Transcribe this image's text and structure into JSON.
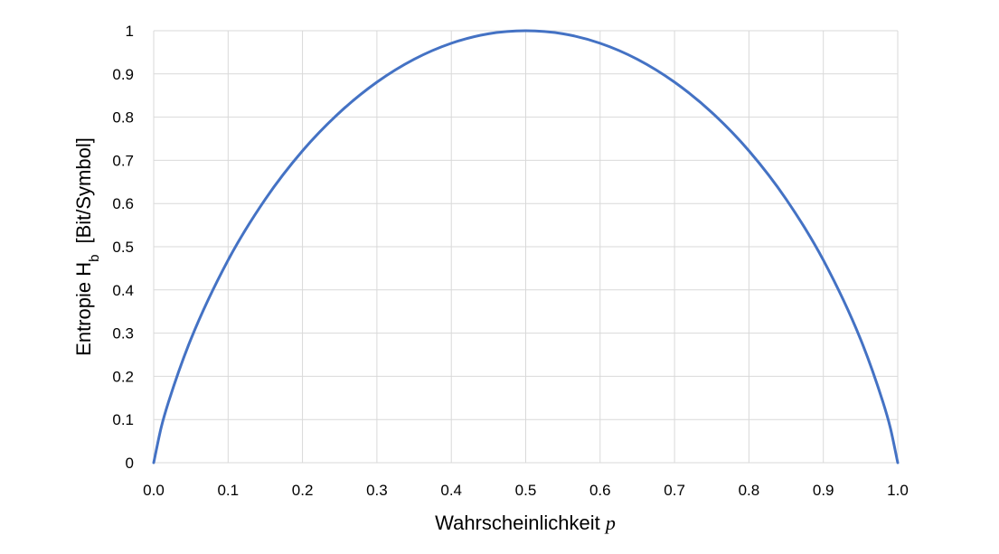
{
  "chart_data": {
    "type": "line",
    "title": "",
    "xlabel": "Wahrscheinlichkeit",
    "xlabel_variable": "p",
    "ylabel": "Entropie",
    "ylabel_symbol": "H",
    "ylabel_subscript": "b",
    "ylabel_unit": "[Bit/Symbol]",
    "xlim": [
      0,
      1
    ],
    "ylim": [
      0,
      1
    ],
    "x_ticks": [
      "0.0",
      "0.1",
      "0.2",
      "0.3",
      "0.4",
      "0.5",
      "0.6",
      "0.7",
      "0.8",
      "0.9",
      "1.0"
    ],
    "y_ticks": [
      "0",
      "0.1",
      "0.2",
      "0.3",
      "0.4",
      "0.5",
      "0.6",
      "0.7",
      "0.8",
      "0.9",
      "1"
    ],
    "grid": true,
    "legend": "none",
    "series": [
      {
        "color": "#4472C4",
        "x": [
          0.0,
          0.01,
          0.02,
          0.05,
          0.1,
          0.15,
          0.2,
          0.25,
          0.3,
          0.35,
          0.4,
          0.45,
          0.5,
          0.55,
          0.6,
          0.65,
          0.7,
          0.75,
          0.8,
          0.85,
          0.9,
          0.95,
          0.98,
          0.99,
          1.0
        ],
        "y": [
          0.0,
          0.081,
          0.141,
          0.286,
          0.469,
          0.61,
          0.722,
          0.811,
          0.881,
          0.934,
          0.971,
          0.993,
          1.0,
          0.993,
          0.971,
          0.934,
          0.881,
          0.811,
          0.722,
          0.61,
          0.469,
          0.286,
          0.141,
          0.081,
          0.0
        ]
      }
    ]
  }
}
